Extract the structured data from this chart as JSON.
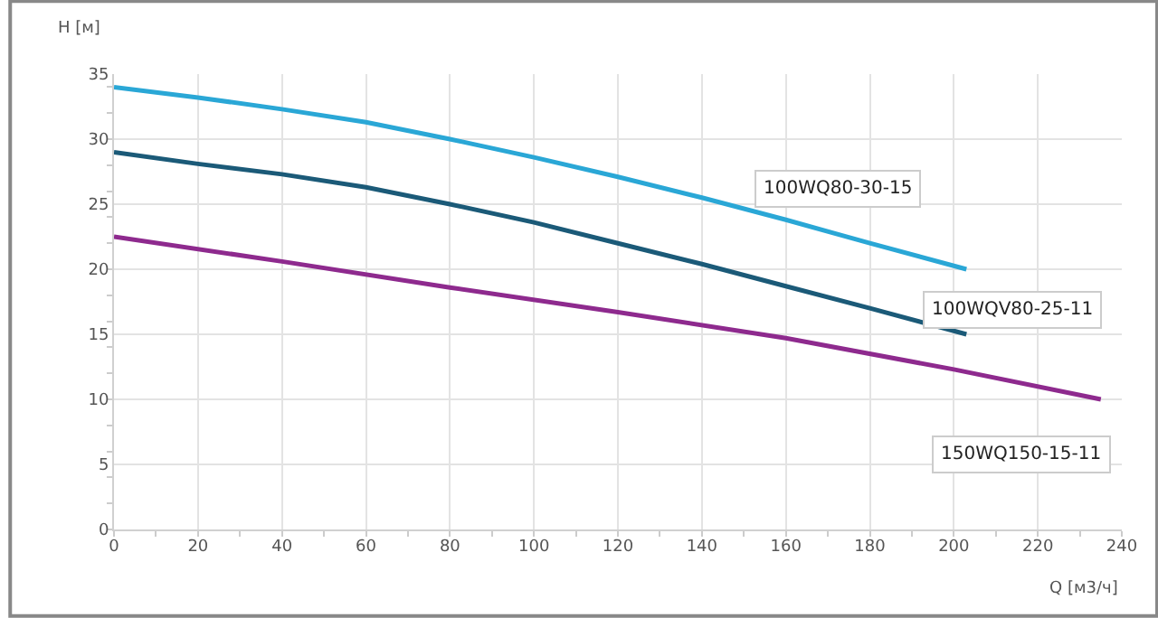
{
  "chart_data": {
    "type": "line",
    "xlabel": "Q [м3/ч]",
    "ylabel": "H [м]",
    "xlim": [
      0,
      240
    ],
    "xticks": [
      0,
      20,
      40,
      60,
      80,
      100,
      120,
      140,
      160,
      180,
      200,
      220,
      240
    ],
    "ylim": [
      0,
      35
    ],
    "yticks": [
      0,
      5,
      10,
      15,
      20,
      25,
      30,
      35
    ],
    "grid": true,
    "legend": false,
    "marker": "none",
    "line_style": "solid",
    "series": [
      {
        "name": "100WQ80-30-15",
        "color": "#2aa7d6",
        "x": [
          0,
          20,
          40,
          60,
          80,
          100,
          120,
          140,
          160,
          180,
          203
        ],
        "values": [
          34,
          33.2,
          32.3,
          31.3,
          30,
          28.6,
          27.1,
          25.5,
          23.8,
          22,
          20
        ]
      },
      {
        "name": "100WQV80-25-11",
        "color": "#1b5a78",
        "x": [
          0,
          20,
          40,
          60,
          80,
          100,
          120,
          140,
          160,
          180,
          203
        ],
        "values": [
          29,
          28.1,
          27.3,
          26.3,
          25,
          23.6,
          22,
          20.4,
          18.7,
          17,
          15
        ]
      },
      {
        "name": "150WQ150-15-11",
        "color": "#8e2a8e",
        "x": [
          0,
          40,
          80,
          120,
          160,
          200,
          235
        ],
        "values": [
          22.5,
          20.6,
          18.6,
          16.7,
          14.7,
          12.3,
          10
        ]
      }
    ]
  }
}
